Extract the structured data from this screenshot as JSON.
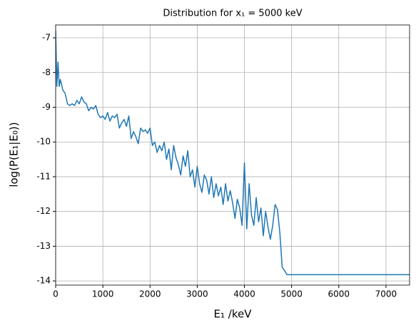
{
  "chart_data": {
    "type": "line",
    "title": "Distribution for x₁ = 5000 keV",
    "x_label": "E₁ /keV",
    "y_label": "log(P(E₁|E₀))",
    "x": [
      0,
      25,
      50,
      75,
      100,
      150,
      200,
      250,
      300,
      350,
      400,
      450,
      500,
      550,
      600,
      650,
      700,
      750,
      800,
      850,
      900,
      950,
      1000,
      1050,
      1100,
      1150,
      1200,
      1250,
      1300,
      1350,
      1400,
      1450,
      1500,
      1550,
      1600,
      1650,
      1700,
      1750,
      1800,
      1850,
      1900,
      1950,
      2000,
      2050,
      2100,
      2150,
      2200,
      2250,
      2300,
      2350,
      2400,
      2450,
      2500,
      2550,
      2600,
      2650,
      2700,
      2750,
      2800,
      2850,
      2900,
      2950,
      3000,
      3050,
      3100,
      3150,
      3200,
      3250,
      3300,
      3350,
      3400,
      3450,
      3500,
      3550,
      3600,
      3650,
      3700,
      3750,
      3800,
      3850,
      3900,
      3950,
      4000,
      4050,
      4100,
      4150,
      4200,
      4250,
      4300,
      4350,
      4400,
      4450,
      4500,
      4550,
      4600,
      4650,
      4700,
      4750,
      4800,
      4850,
      4900,
      7500
    ],
    "series": [
      {
        "name": "log P",
        "color": "#1f77b4",
        "values": [
          -6.8,
          -8.4,
          -7.7,
          -8.4,
          -8.2,
          -8.5,
          -8.6,
          -8.9,
          -8.95,
          -8.9,
          -8.95,
          -8.8,
          -8.9,
          -8.7,
          -8.85,
          -8.9,
          -9.1,
          -9.0,
          -9.05,
          -8.95,
          -9.2,
          -9.3,
          -9.25,
          -9.35,
          -9.15,
          -9.4,
          -9.25,
          -9.3,
          -9.2,
          -9.6,
          -9.45,
          -9.35,
          -9.55,
          -9.25,
          -9.9,
          -9.7,
          -9.85,
          -10.05,
          -9.6,
          -9.7,
          -9.65,
          -9.75,
          -9.6,
          -10.1,
          -10.0,
          -10.3,
          -10.1,
          -10.25,
          -10.0,
          -10.5,
          -10.2,
          -10.8,
          -10.1,
          -10.45,
          -10.65,
          -10.95,
          -10.4,
          -10.7,
          -10.25,
          -11.0,
          -10.8,
          -11.3,
          -10.7,
          -11.2,
          -11.45,
          -10.95,
          -11.1,
          -11.5,
          -11.0,
          -11.6,
          -11.2,
          -11.55,
          -11.3,
          -11.8,
          -11.2,
          -11.7,
          -11.4,
          -11.75,
          -12.2,
          -11.65,
          -11.9,
          -12.4,
          -10.6,
          -12.5,
          -11.2,
          -12.1,
          -12.4,
          -11.6,
          -12.3,
          -11.9,
          -12.7,
          -12.0,
          -12.45,
          -12.8,
          -12.4,
          -11.8,
          -11.95,
          -12.6,
          -13.6,
          -13.7,
          -13.82,
          -13.82
        ]
      }
    ],
    "xlim": [
      0,
      7500
    ],
    "xticks": [
      0,
      1000,
      2000,
      3000,
      4000,
      5000,
      6000,
      7000
    ],
    "ylim": [
      -14.12,
      -6.63
    ],
    "yticks": [
      -14,
      -13,
      -12,
      -11,
      -10,
      -9,
      -8,
      -7
    ],
    "grid": true
  }
}
